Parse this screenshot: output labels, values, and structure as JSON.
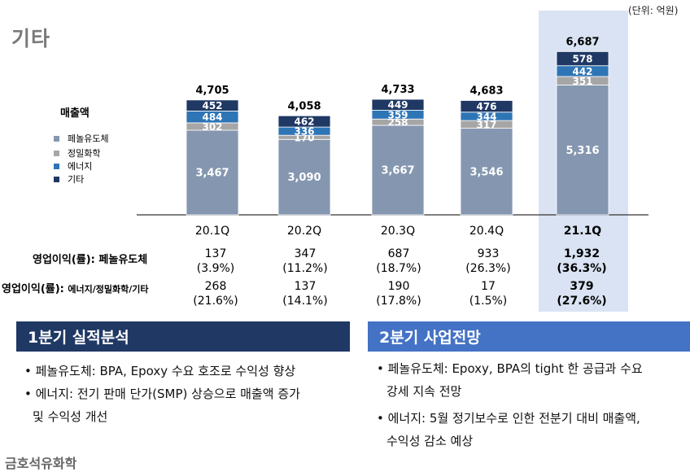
{
  "page_title": "기타",
  "unit_label": "(단위: 억원)",
  "legend": {
    "title": "매출액",
    "items": [
      {
        "label": "페놀유도체",
        "color": "#8597b0"
      },
      {
        "label": "정밀화학",
        "color": "#a6a6a6"
      },
      {
        "label": "에너지",
        "color": "#2e75b6"
      },
      {
        "label": "기타",
        "color": "#1f3864"
      }
    ]
  },
  "chart_data": {
    "type": "bar",
    "stacked": true,
    "title": "매출액",
    "categories": [
      "20.1Q",
      "20.2Q",
      "20.3Q",
      "20.4Q",
      "21.1Q"
    ],
    "highlight_category": "21.1Q",
    "series": [
      {
        "name": "페놀유도체",
        "values": [
          3467,
          3090,
          3667,
          3546,
          5316
        ],
        "labels": [
          "3,467",
          "3,090",
          "3,667",
          "3,546",
          "5,316"
        ]
      },
      {
        "name": "정밀화학",
        "values": [
          302,
          170,
          258,
          317,
          351
        ],
        "labels": [
          "302",
          "170",
          "258",
          "317",
          "351"
        ]
      },
      {
        "name": "에너지",
        "values": [
          484,
          336,
          359,
          344,
          442
        ],
        "labels": [
          "484",
          "336",
          "359",
          "344",
          "442"
        ]
      },
      {
        "name": "기타",
        "values": [
          452,
          462,
          449,
          476,
          578
        ],
        "labels": [
          "452",
          "462",
          "449",
          "476",
          "578"
        ]
      }
    ],
    "totals": [
      4705,
      4058,
      4733,
      4683,
      6687
    ],
    "total_labels": [
      "4,705",
      "4,058",
      "4,733",
      "4,683",
      "6,687"
    ],
    "ylim": [
      0,
      7000
    ]
  },
  "table": {
    "rows": [
      {
        "label": "영업이익(률): 페놀유도체",
        "values": [
          "137",
          "347",
          "687",
          "933",
          "1,932"
        ],
        "rates": [
          "(3.9%)",
          "(11.2%)",
          "(18.7%)",
          "(26.3%)",
          "(36.3%)"
        ]
      },
      {
        "label_main": "영업이익(률): ",
        "label_sub": "에너지/정밀화학/기타",
        "values": [
          "268",
          "137",
          "190",
          "17",
          "379"
        ],
        "rates": [
          "(21.6%)",
          "(14.1%)",
          "(17.8%)",
          "(1.5%)",
          "(27.6%)"
        ]
      }
    ]
  },
  "panels": [
    {
      "title": "1분기 실적분석",
      "color": "#1f3864",
      "bullets": [
        [
          "페놀유도체: BPA, Epoxy 수요 호조로 수익성 향상"
        ],
        [
          "에너지: 전기 판매 단가(SMP) 상승으로 매출액 증가",
          "및 수익성 개선"
        ]
      ]
    },
    {
      "title": "2분기 사업전망",
      "color": "#4472c4",
      "bullets": [
        [
          "페놀유도체: Epoxy, BPA의 tight 한 공급과 수요",
          "강세 지속 전망"
        ],
        [
          "에너지: 5월 정기보수로 인한 전분기 대비 매출액,",
          "수익성 감소 예상"
        ]
      ]
    }
  ],
  "company": "금호석유화학"
}
